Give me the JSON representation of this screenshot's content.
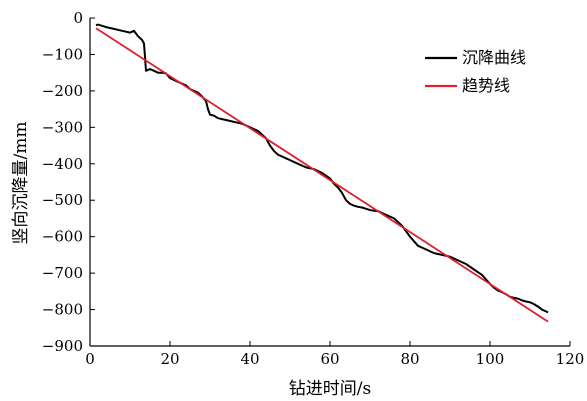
{
  "chart_data": {
    "type": "line",
    "title": "",
    "xlabel": "钻进时间/s",
    "ylabel": "竖向沉降量/mm",
    "xlim": [
      0,
      120
    ],
    "ylim": [
      -900,
      0
    ],
    "x_ticks": [
      0,
      20,
      40,
      60,
      80,
      100,
      120
    ],
    "y_ticks": [
      0,
      -100,
      -200,
      -300,
      -400,
      -500,
      -600,
      -700,
      -800,
      -900
    ],
    "grid": false,
    "legend_position": "top-right",
    "series": [
      {
        "name": "沉降曲线",
        "color": "#000000",
        "x": [
          1.5,
          2,
          4,
          6,
          8,
          10,
          11,
          12,
          13,
          13.5,
          14,
          15,
          16,
          17,
          18,
          19,
          20,
          21,
          22,
          23,
          24,
          25,
          26,
          27,
          28,
          29,
          29.5,
          30,
          31,
          32,
          34,
          36,
          38,
          40,
          42,
          44,
          45,
          46,
          47,
          48,
          49,
          50,
          52,
          54,
          56,
          58,
          60,
          61,
          62,
          63,
          64,
          65,
          66,
          67,
          68,
          70,
          72,
          74,
          76,
          78,
          80,
          82,
          84,
          86,
          88,
          90,
          92,
          94,
          96,
          98,
          100,
          101,
          102,
          103,
          104,
          105,
          106,
          107,
          108,
          109,
          110,
          111,
          112,
          113,
          114,
          114.5
        ],
        "y": [
          -20,
          -18,
          -25,
          -30,
          -35,
          -40,
          -35,
          -50,
          -60,
          -70,
          -145,
          -140,
          -145,
          -150,
          -150,
          -152,
          -165,
          -170,
          -175,
          -180,
          -185,
          -195,
          -200,
          -205,
          -215,
          -228,
          -250,
          -265,
          -268,
          -275,
          -280,
          -285,
          -290,
          -300,
          -310,
          -330,
          -350,
          -365,
          -375,
          -380,
          -385,
          -390,
          -400,
          -410,
          -415,
          -425,
          -440,
          -455,
          -465,
          -480,
          -500,
          -510,
          -515,
          -518,
          -520,
          -527,
          -530,
          -540,
          -550,
          -570,
          -600,
          -625,
          -635,
          -645,
          -650,
          -655,
          -665,
          -675,
          -690,
          -705,
          -730,
          -740,
          -748,
          -752,
          -758,
          -765,
          -768,
          -770,
          -775,
          -778,
          -780,
          -785,
          -792,
          -800,
          -805,
          -808
        ]
      },
      {
        "name": "趋势线",
        "color": "#e0202a",
        "x": [
          1.5,
          114.5
        ],
        "y": [
          -28,
          -833
        ]
      }
    ]
  }
}
